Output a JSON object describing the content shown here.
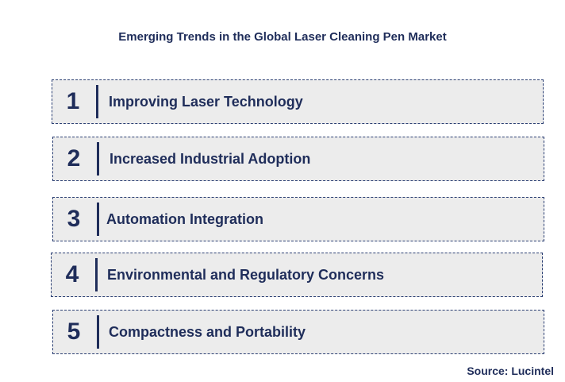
{
  "title": "Emerging Trends in the Global Laser Cleaning Pen Market",
  "trends": [
    {
      "number": "1",
      "label": "Improving Laser Technology"
    },
    {
      "number": "2",
      "label": "Increased Industrial Adoption"
    },
    {
      "number": "3",
      "label": "Automation Integration"
    },
    {
      "number": "4",
      "label": "Environmental and Regulatory Concerns"
    },
    {
      "number": "5",
      "label": "Compactness and Portability"
    }
  ],
  "source": "Source: Lucintel"
}
